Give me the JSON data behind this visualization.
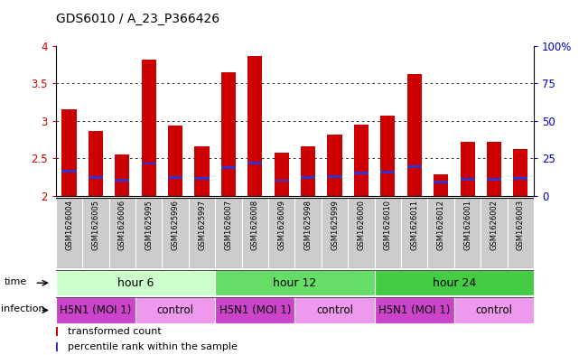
{
  "title": "GDS6010 / A_23_P366426",
  "samples": [
    "GSM1626004",
    "GSM1626005",
    "GSM1626006",
    "GSM1625995",
    "GSM1625996",
    "GSM1625997",
    "GSM1626007",
    "GSM1626008",
    "GSM1626009",
    "GSM1625998",
    "GSM1625999",
    "GSM1626000",
    "GSM1626010",
    "GSM1626011",
    "GSM1626012",
    "GSM1626001",
    "GSM1626002",
    "GSM1626003"
  ],
  "bar_values": [
    3.15,
    2.87,
    2.55,
    3.82,
    2.94,
    2.66,
    3.65,
    3.87,
    2.58,
    2.66,
    2.82,
    2.95,
    3.07,
    3.63,
    2.28,
    2.72,
    2.72,
    2.62
  ],
  "blue_values": [
    2.33,
    2.24,
    2.21,
    2.43,
    2.24,
    2.23,
    2.38,
    2.44,
    2.2,
    2.24,
    2.25,
    2.3,
    2.32,
    2.39,
    2.18,
    2.22,
    2.22,
    2.23
  ],
  "ylim": [
    2.0,
    4.0
  ],
  "yticks": [
    2.0,
    2.5,
    3.0,
    3.5,
    4.0
  ],
  "right_ylabels": [
    "0",
    "25",
    "50",
    "75",
    "100%"
  ],
  "right_ticks_pct": [
    0,
    25,
    50,
    75,
    100
  ],
  "bar_color": "#cc0000",
  "blue_color": "#3333cc",
  "bar_width": 0.55,
  "time_groups": [
    {
      "label": "hour 6",
      "start": 0,
      "end": 6,
      "color": "#ccffcc"
    },
    {
      "label": "hour 12",
      "start": 6,
      "end": 12,
      "color": "#66dd66"
    },
    {
      "label": "hour 24",
      "start": 12,
      "end": 18,
      "color": "#44cc44"
    }
  ],
  "infection_groups": [
    {
      "label": "H5N1 (MOI 1)",
      "start": 0,
      "end": 3,
      "color": "#cc44cc"
    },
    {
      "label": "control",
      "start": 3,
      "end": 6,
      "color": "#ee99ee"
    },
    {
      "label": "H5N1 (MOI 1)",
      "start": 6,
      "end": 9,
      "color": "#cc44cc"
    },
    {
      "label": "control",
      "start": 9,
      "end": 12,
      "color": "#ee99ee"
    },
    {
      "label": "H5N1 (MOI 1)",
      "start": 12,
      "end": 15,
      "color": "#cc44cc"
    },
    {
      "label": "control",
      "start": 15,
      "end": 18,
      "color": "#ee99ee"
    }
  ],
  "tick_color": "#cc0000",
  "right_tick_color": "#0000cc",
  "sample_bg": "#cccccc",
  "sample_font": 6.0,
  "row_label_fontsize": 8,
  "legend_fontsize": 8,
  "title_fontsize": 10
}
